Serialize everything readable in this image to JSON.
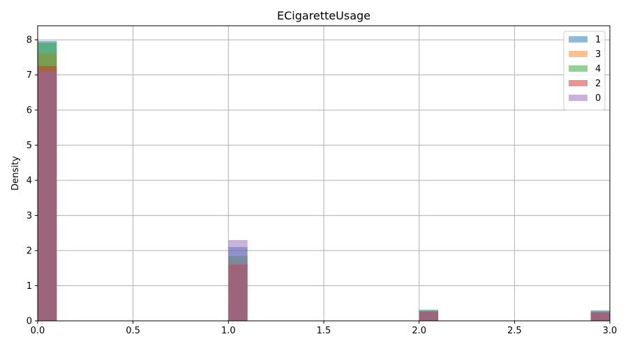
{
  "chart_data": {
    "type": "bar",
    "title": "ECigaretteUsage",
    "xlabel": "",
    "ylabel": "Density",
    "xlim": [
      0,
      3
    ],
    "ylim": [
      0,
      8.4
    ],
    "grid": true,
    "legend_position": "top-right",
    "bin_width": 0.1,
    "x_ticks": [
      "0.0",
      "0.5",
      "1.0",
      "1.5",
      "2.0",
      "2.5",
      "3.0"
    ],
    "y_ticks": [
      "0",
      "1",
      "2",
      "3",
      "4",
      "5",
      "6",
      "7",
      "8"
    ],
    "bins": [
      0.0,
      1.0,
      2.0,
      2.9
    ],
    "series": [
      {
        "name": "1",
        "color": "#1f77b4",
        "values": [
          7.97,
          2.1,
          0.32,
          0.3
        ]
      },
      {
        "name": "3",
        "color": "#ff7f0e",
        "values": [
          7.6,
          1.65,
          0.27,
          0.25
        ]
      },
      {
        "name": "4",
        "color": "#2ca02c",
        "values": [
          7.92,
          1.85,
          0.29,
          0.27
        ]
      },
      {
        "name": "2",
        "color": "#d62728",
        "values": [
          7.25,
          1.6,
          0.27,
          0.23
        ]
      },
      {
        "name": "0",
        "color": "#9467bd",
        "values": [
          7.1,
          2.3,
          0.27,
          0.26
        ]
      }
    ]
  }
}
